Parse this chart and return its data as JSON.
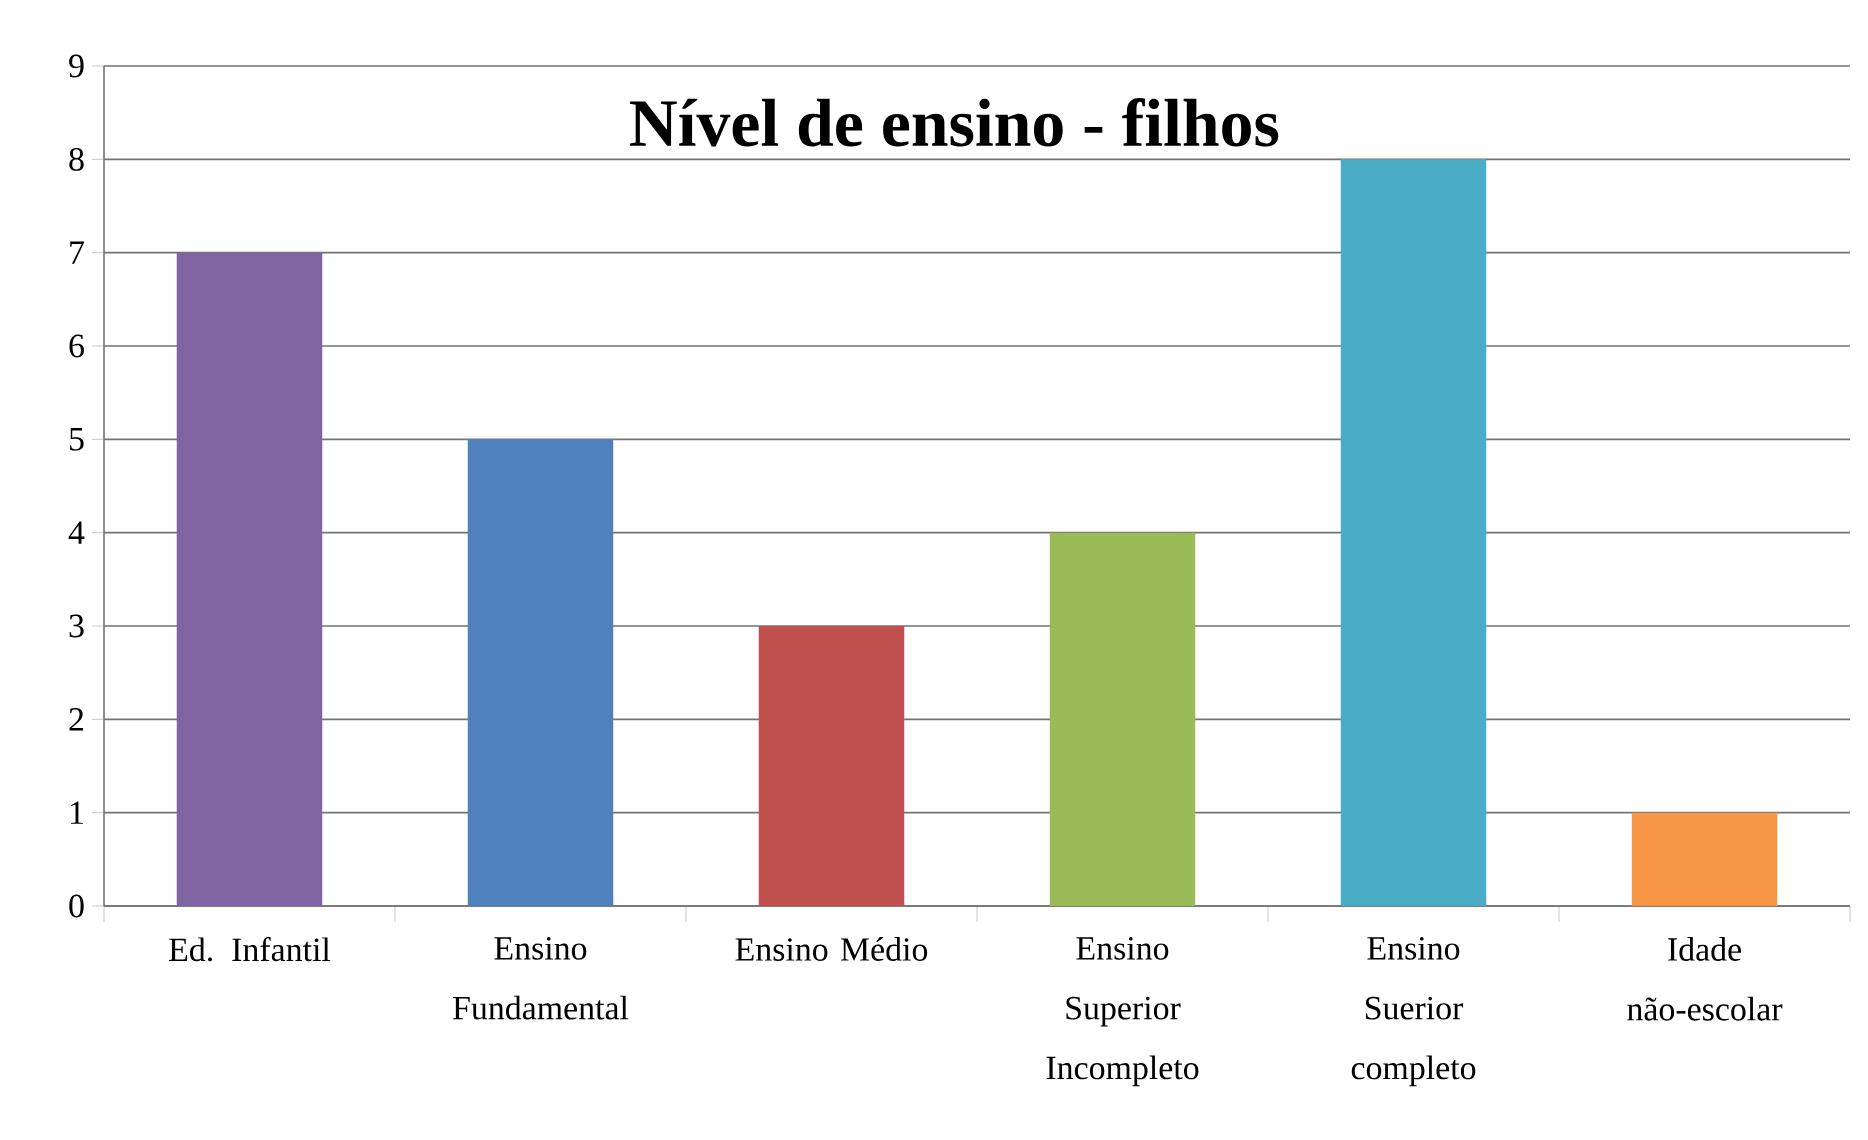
{
  "chart_data": {
    "type": "bar",
    "title": "Nível de ensino - filhos",
    "categories": [
      "Ed. Infantil",
      "Ensino Fundamental",
      "Ensino Médio",
      "Ensino Superior Incompleto",
      "Ensino Suerior completo",
      "Idade não-escolar"
    ],
    "values": [
      7,
      5,
      3,
      4,
      8,
      1
    ],
    "colors": [
      "#8064a2",
      "#4f81bd",
      "#c0504d",
      "#9bbb59",
      "#4bacc6",
      "#f79646"
    ],
    "ylim": [
      0,
      9
    ],
    "yticks": [
      0,
      1,
      2,
      3,
      4,
      5,
      6,
      7,
      8,
      9
    ],
    "grid": "y"
  }
}
